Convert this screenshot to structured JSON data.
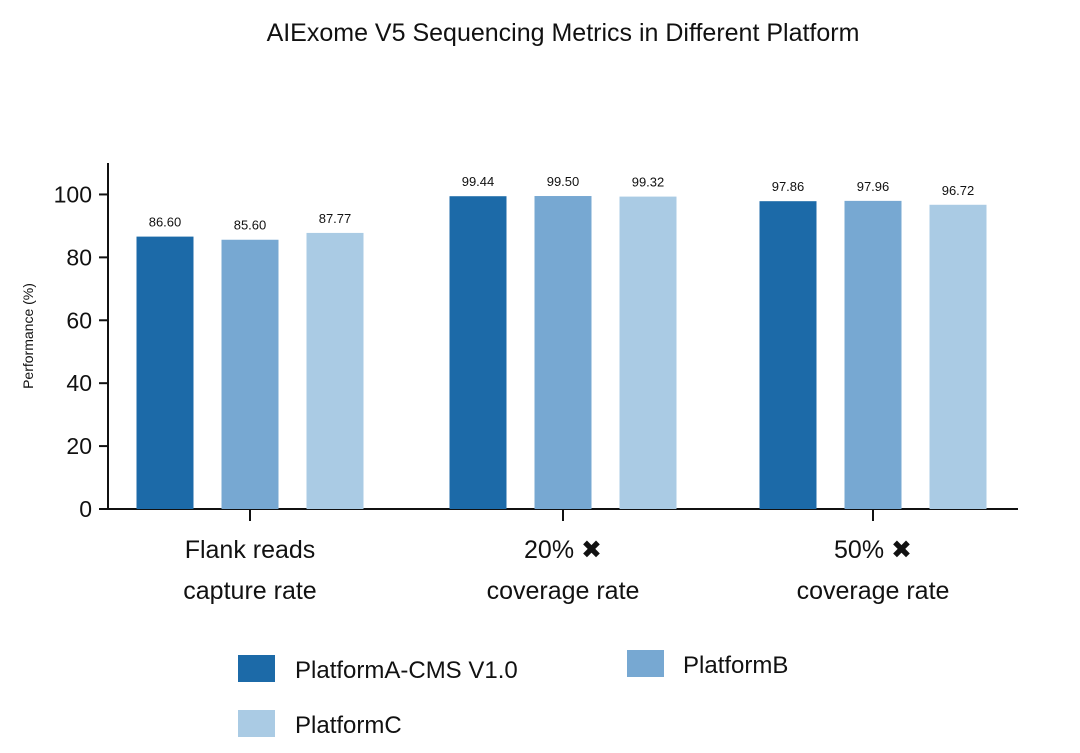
{
  "chart_data": {
    "type": "bar",
    "title": "AIExome V5 Sequencing Metrics in Different Platform",
    "xlabel": "",
    "ylabel": "Performance (%)",
    "ylim": [
      0,
      110
    ],
    "yticks": [
      "0",
      "20",
      "40",
      "60",
      "80",
      "100"
    ],
    "grid": false,
    "legend_position": "bottom",
    "categories": [
      [
        "Flank reads",
        "capture rate"
      ],
      [
        "20% ✖",
        "coverage rate"
      ],
      [
        "50% ✖",
        "coverage rate"
      ]
    ],
    "series": [
      {
        "name": "PlatformA-CMS V1.0",
        "color": "#1c6aa8",
        "values": [
          86.6,
          99.44,
          97.86
        ],
        "labels": [
          "86.60",
          "99.44",
          "97.86"
        ]
      },
      {
        "name": "PlatformB",
        "color": "#77a8d2",
        "values": [
          85.6,
          99.5,
          97.96
        ],
        "labels": [
          "85.60",
          "99.50",
          "97.96"
        ]
      },
      {
        "name": "PlatformC",
        "color": "#aacbe4",
        "values": [
          87.77,
          99.32,
          96.72
        ],
        "labels": [
          "87.77",
          "99.32",
          "96.72"
        ]
      }
    ]
  }
}
